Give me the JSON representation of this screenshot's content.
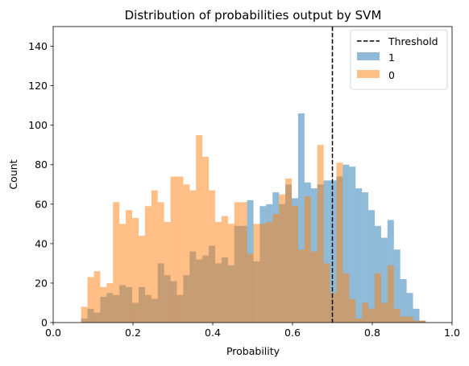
{
  "chart_data": {
    "type": "bar",
    "title": "Distribution of probabilities output by SVM",
    "xlabel": "Probability",
    "ylabel": "Count",
    "xlim": [
      0.0,
      1.0
    ],
    "ylim": [
      0,
      150
    ],
    "xticks": [
      "0.0",
      "0.2",
      "0.4",
      "0.6",
      "0.8",
      "1.0"
    ],
    "yticks": [
      "0",
      "20",
      "40",
      "60",
      "80",
      "100",
      "120",
      "140"
    ],
    "grid": false,
    "legend": "top-right",
    "threshold": {
      "name": "Threshold",
      "value": 0.7,
      "color": "#000000"
    },
    "bins": {
      "start": 0.07,
      "width": 0.016,
      "count": 54
    },
    "series": [
      {
        "name": "1",
        "color": "#1f77b4",
        "values": [
          2,
          7,
          5,
          13,
          15,
          14,
          19,
          18,
          10,
          18,
          14,
          12,
          30,
          24,
          21,
          14,
          24,
          36,
          32,
          34,
          39,
          30,
          33,
          29,
          49,
          49,
          62,
          31,
          59,
          60,
          66,
          60,
          70,
          63,
          106,
          71,
          68,
          70,
          72,
          72,
          74,
          80,
          79,
          68,
          66,
          57,
          49,
          43,
          52,
          37,
          22,
          15,
          7,
          1
        ]
      },
      {
        "name": "0",
        "color": "#ff7f0e",
        "values": [
          8,
          23,
          26,
          18,
          20,
          61,
          50,
          57,
          53,
          44,
          59,
          67,
          61,
          51,
          74,
          74,
          70,
          67,
          95,
          84,
          67,
          51,
          54,
          50,
          61,
          61,
          35,
          50,
          50,
          51,
          55,
          65,
          73,
          59,
          37,
          64,
          36,
          90,
          30,
          15,
          81,
          25,
          12,
          2,
          10,
          7,
          25,
          10,
          29,
          7,
          3,
          3,
          1,
          1
        ]
      }
    ]
  }
}
